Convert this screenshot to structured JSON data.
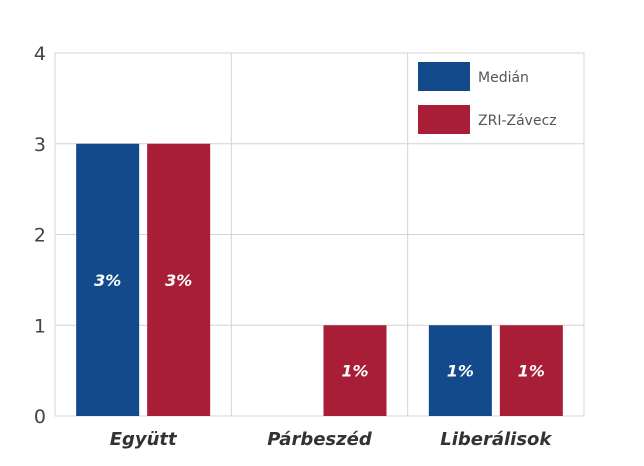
{
  "chart_data": {
    "type": "bar",
    "categories": [
      "Együtt",
      "Párbeszéd",
      "Liberálisok"
    ],
    "series": [
      {
        "name": "Medián",
        "values": [
          3,
          null,
          1
        ],
        "labels": [
          "3%",
          "",
          "1%"
        ],
        "color": "#134a8b"
      },
      {
        "name": "ZRI-Závecz",
        "values": [
          3,
          1,
          1
        ],
        "labels": [
          "3%",
          "1%",
          "1%"
        ],
        "color": "#a81e36"
      }
    ],
    "ylim": [
      0,
      4
    ],
    "yticks": [
      "0",
      "1",
      "2",
      "3",
      "4"
    ],
    "grid": true,
    "legend": "top-right",
    "title": "",
    "xlabel": "",
    "ylabel": ""
  }
}
